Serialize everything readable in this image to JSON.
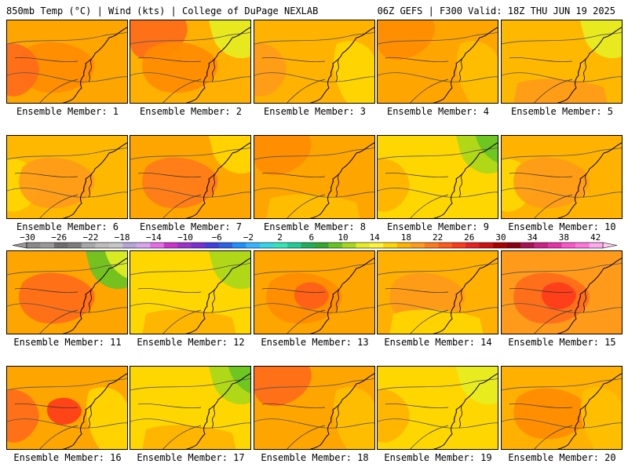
{
  "header": {
    "left": "850mb Temp (°C) | Wind (kts) | College of DuPage NEXLAB",
    "right": "06Z GEFS | F300 Valid: 18Z THU JUN 19 2025"
  },
  "colorbar": {
    "ticks": [
      "−30",
      "−26",
      "−22",
      "−18",
      "−14",
      "−10",
      "−6",
      "−2",
      "2",
      "6",
      "10",
      "14",
      "18",
      "22",
      "26",
      "30",
      "34",
      "38",
      "42"
    ],
    "colors": [
      "#8a8a8a",
      "#999999",
      "#6e6e6e",
      "#7d7d7d",
      "#a8a8a8",
      "#bdbdbd",
      "#c7c7c7",
      "#b6a6d8",
      "#d9a4f0",
      "#e86ce8",
      "#cc33cc",
      "#9933cc",
      "#7a2fd6",
      "#4040e0",
      "#2a62e6",
      "#1e90ff",
      "#33b5ff",
      "#33d6e6",
      "#33e6b3",
      "#22cc99",
      "#1fae5c",
      "#33a82f",
      "#66c422",
      "#a8d81a",
      "#e6ee22",
      "#fff23a",
      "#ffd700",
      "#ffb300",
      "#ff9a1a",
      "#ff7a1a",
      "#ff5c1a",
      "#ff3a1a",
      "#e62222",
      "#cc1111",
      "#aa0000",
      "#8c0011",
      "#aa1155",
      "#cc2288",
      "#e633aa",
      "#ff55cc",
      "#ff77dd",
      "#ffaaee"
    ]
  },
  "members": [
    {
      "label": "Ensemble Member: 1",
      "base": "#ffa500",
      "blobs": [
        {
          "c": "#ff8c00",
          "s": "main"
        },
        {
          "c": "#ff6a1a",
          "s": "west"
        }
      ]
    },
    {
      "label": "Ensemble Member: 2",
      "base": "#ffb000",
      "blobs": [
        {
          "c": "#ff6a1a",
          "s": "nw"
        },
        {
          "c": "#ff8c00",
          "s": "main"
        },
        {
          "c": "#e6ee22",
          "s": "ne"
        }
      ]
    },
    {
      "label": "Ensemble Member: 3",
      "base": "#ffb300",
      "blobs": [
        {
          "c": "#ffd700",
          "s": "east"
        },
        {
          "c": "#ff9a1a",
          "s": "west"
        }
      ]
    },
    {
      "label": "Ensemble Member: 4",
      "base": "#ffa500",
      "blobs": [
        {
          "c": "#ff8c00",
          "s": "nw"
        },
        {
          "c": "#ffc000",
          "s": "east"
        }
      ]
    },
    {
      "label": "Ensemble Member: 5",
      "base": "#ffb800",
      "blobs": [
        {
          "c": "#e6ee22",
          "s": "ne"
        },
        {
          "c": "#ff9a1a",
          "s": "south"
        }
      ]
    },
    {
      "label": "Ensemble Member: 6",
      "base": "#ffb800",
      "blobs": [
        {
          "c": "#ffd700",
          "s": "west"
        },
        {
          "c": "#ff9a1a",
          "s": "main"
        }
      ]
    },
    {
      "label": "Ensemble Member: 7",
      "base": "#ffa500",
      "blobs": [
        {
          "c": "#ff7a1a",
          "s": "main"
        },
        {
          "c": "#ffd700",
          "s": "ne"
        }
      ]
    },
    {
      "label": "Ensemble Member: 8",
      "base": "#ffa500",
      "blobs": [
        {
          "c": "#ff8c00",
          "s": "nw"
        },
        {
          "c": "#ffc000",
          "s": "south"
        }
      ]
    },
    {
      "label": "Ensemble Member: 9",
      "base": "#ffd700",
      "blobs": [
        {
          "c": "#a8d81a",
          "s": "ne"
        },
        {
          "c": "#ffb300",
          "s": "west"
        },
        {
          "c": "#66c422",
          "s": "ne2"
        }
      ]
    },
    {
      "label": "Ensemble Member: 10",
      "base": "#ffb300",
      "blobs": [
        {
          "c": "#ffd700",
          "s": "west"
        },
        {
          "c": "#ff9a1a",
          "s": "main"
        }
      ]
    },
    {
      "label": "Ensemble Member: 11",
      "base": "#ffa500",
      "blobs": [
        {
          "c": "#ff6a1a",
          "s": "main"
        },
        {
          "c": "#66c422",
          "s": "ne"
        },
        {
          "c": "#e6ee22",
          "s": "ne2"
        }
      ]
    },
    {
      "label": "Ensemble Member: 12",
      "base": "#ffd700",
      "blobs": [
        {
          "c": "#a8d81a",
          "s": "ne"
        },
        {
          "c": "#ffb300",
          "s": "south"
        }
      ]
    },
    {
      "label": "Ensemble Member: 13",
      "base": "#ffa500",
      "blobs": [
        {
          "c": "#ff8c00",
          "s": "main"
        },
        {
          "c": "#ff5c1a",
          "s": "center"
        }
      ]
    },
    {
      "label": "Ensemble Member: 14",
      "base": "#ffb000",
      "blobs": [
        {
          "c": "#ff9a1a",
          "s": "main"
        },
        {
          "c": "#ffd700",
          "s": "south"
        }
      ]
    },
    {
      "label": "Ensemble Member: 15",
      "base": "#ff9a1a",
      "blobs": [
        {
          "c": "#ff6a1a",
          "s": "main"
        },
        {
          "c": "#ff3a1a",
          "s": "center"
        }
      ]
    },
    {
      "label": "Ensemble Member: 16",
      "base": "#ffa500",
      "blobs": [
        {
          "c": "#ff6a1a",
          "s": "west"
        },
        {
          "c": "#ff3a1a",
          "s": "center"
        },
        {
          "c": "#ffd700",
          "s": "east"
        }
      ]
    },
    {
      "label": "Ensemble Member: 17",
      "base": "#ffd700",
      "blobs": [
        {
          "c": "#a8d81a",
          "s": "ne"
        },
        {
          "c": "#66c422",
          "s": "ne2"
        },
        {
          "c": "#ffb300",
          "s": "south"
        }
      ]
    },
    {
      "label": "Ensemble Member: 18",
      "base": "#ffa500",
      "blobs": [
        {
          "c": "#ff6a1a",
          "s": "nw"
        },
        {
          "c": "#ffc000",
          "s": "east"
        }
      ]
    },
    {
      "label": "Ensemble Member: 19",
      "base": "#ffd700",
      "blobs": [
        {
          "c": "#e6ee22",
          "s": "ne"
        },
        {
          "c": "#ffb300",
          "s": "west"
        }
      ]
    },
    {
      "label": "Ensemble Member: 20",
      "base": "#ffb000",
      "blobs": [
        {
          "c": "#ff8c00",
          "s": "main"
        },
        {
          "c": "#ffc000",
          "s": "east"
        }
      ]
    }
  ]
}
